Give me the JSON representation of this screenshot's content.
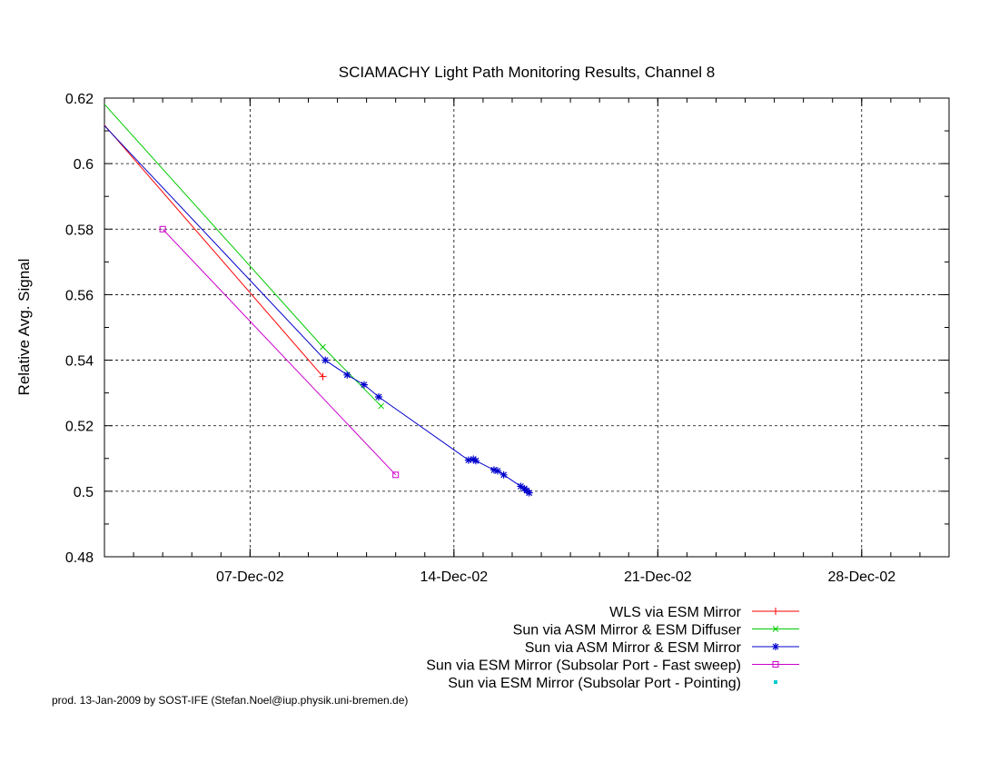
{
  "chart_data": {
    "type": "line",
    "title": "SCIAMACHY Light Path Monitoring Results, Channel 8",
    "xlabel": "",
    "ylabel": "Relative Avg. Signal",
    "xlim": [
      "2002-12-02",
      "2002-12-31"
    ],
    "ylim": [
      0.48,
      0.62
    ],
    "x_ticks": [
      {
        "date": "2002-12-07",
        "label": "07-Dec-02"
      },
      {
        "date": "2002-12-14",
        "label": "14-Dec-02"
      },
      {
        "date": "2002-12-21",
        "label": "21-Dec-02"
      },
      {
        "date": "2002-12-28",
        "label": "28-Dec-02"
      }
    ],
    "y_ticks": [
      0.48,
      0.5,
      0.52,
      0.54,
      0.56,
      0.58,
      0.6,
      0.62
    ],
    "y_tick_labels": [
      "0.48",
      "0.5",
      "0.52",
      "0.54",
      "0.56",
      "0.58",
      "0.6",
      "0.62"
    ],
    "grid": true,
    "legend_position": "bottom-right, below plot",
    "series": [
      {
        "name": "WLS via ESM Mirror",
        "color": "#ff0000",
        "marker": "plus",
        "points": [
          [
            "2002-12-01",
            0.622
          ],
          [
            "2002-12-09 12:00",
            0.535
          ]
        ]
      },
      {
        "name": "Sun via ASM Mirror & ESM Diffuser",
        "color": "#00cc00",
        "marker": "x",
        "points": [
          [
            "2002-12-01",
            0.628
          ],
          [
            "2002-12-09 12:00",
            0.544
          ],
          [
            "2002-12-11 12:00",
            0.526
          ]
        ]
      },
      {
        "name": "Sun via ASM Mirror & ESM Mirror",
        "color": "#0000cc",
        "marker": "star",
        "points": [
          [
            "2002-12-01",
            0.621
          ],
          [
            "2002-12-09 14:00",
            0.54
          ],
          [
            "2002-12-10 08:00",
            0.5355
          ],
          [
            "2002-12-10 22:00",
            0.5325
          ],
          [
            "2002-12-11 10:00",
            0.5288
          ],
          [
            "2002-12-14 12:00",
            0.5095
          ],
          [
            "2002-12-14 16:00",
            0.5098
          ],
          [
            "2002-12-14 18:00",
            0.5093
          ],
          [
            "2002-12-15 09:00",
            0.5065
          ],
          [
            "2002-12-15 12:00",
            0.5062
          ],
          [
            "2002-12-15 17:00",
            0.505
          ],
          [
            "2002-12-16 07:00",
            0.5015
          ],
          [
            "2002-12-16 10:00",
            0.5008
          ],
          [
            "2002-12-16 12:00",
            0.5002
          ],
          [
            "2002-12-16 14:00",
            0.4995
          ]
        ]
      },
      {
        "name": "Sun via ESM Mirror (Subsolar Port - Fast sweep)",
        "color": "#cc00cc",
        "marker": "square",
        "points": [
          [
            "2002-12-04",
            0.58
          ],
          [
            "2002-12-12",
            0.505
          ]
        ]
      },
      {
        "name": "Sun via ESM Mirror (Subsolar Port - Pointing)",
        "color": "#00cccc",
        "marker": "dot",
        "points": []
      }
    ]
  },
  "footer": "prod. 13-Jan-2009 by SOST-IFE (Stefan.Noel@iup.physik.uni-bremen.de)"
}
